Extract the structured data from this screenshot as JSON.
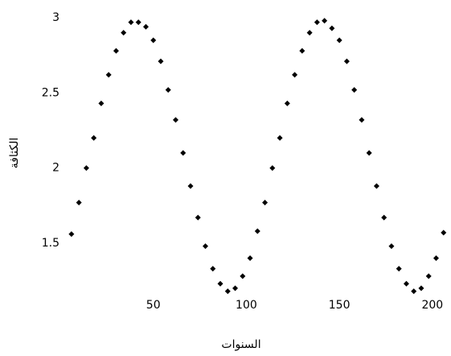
{
  "chart_data": {
    "type": "scatter",
    "x_label": "السنوات",
    "y_label": "الكثافة",
    "x": [
      6,
      10,
      14,
      18,
      22,
      26,
      30,
      34,
      38,
      42,
      46,
      50,
      54,
      58,
      62,
      66,
      70,
      74,
      78,
      82,
      86,
      90,
      94,
      98,
      102,
      106,
      110,
      114,
      118,
      122,
      126,
      130,
      134,
      138,
      142,
      146,
      150,
      154,
      158,
      162,
      166,
      170,
      174,
      178,
      182,
      186,
      190,
      194,
      198,
      202,
      206
    ],
    "values": [
      1.56,
      1.77,
      2.0,
      2.2,
      2.43,
      2.62,
      2.78,
      2.9,
      2.97,
      2.97,
      2.94,
      2.85,
      2.71,
      2.52,
      2.32,
      2.1,
      1.88,
      1.67,
      1.48,
      1.33,
      1.23,
      1.18,
      1.2,
      1.28,
      1.4,
      1.58,
      1.77,
      2.0,
      2.2,
      2.43,
      2.62,
      2.78,
      2.9,
      2.97,
      2.98,
      2.93,
      2.85,
      2.71,
      2.52,
      2.32,
      2.1,
      1.88,
      1.67,
      1.48,
      1.33,
      1.23,
      1.18,
      1.2,
      1.28,
      1.4,
      1.57
    ],
    "color": "#000000",
    "xlim": [
      0,
      210
    ],
    "ylim": [
      1.1,
      3.05
    ],
    "xticks": [
      50,
      100,
      150,
      200
    ],
    "yticks": [
      1.5,
      2,
      2.5,
      3
    ],
    "grid": false
  }
}
